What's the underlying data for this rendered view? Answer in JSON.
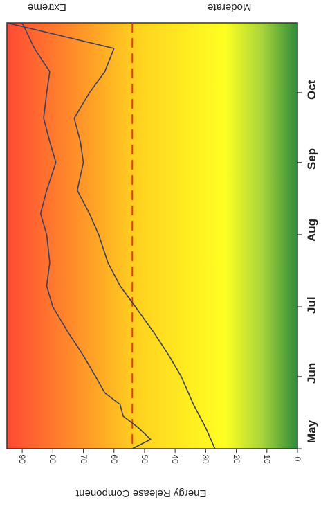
{
  "labels": {
    "extreme": "Extreme",
    "moderate": "Moderate",
    "ylabel": "Energy Release Component"
  },
  "chart_data": {
    "type": "line",
    "ylabel": "Energy Release Component",
    "xlabel": "",
    "x_ticks": [
      "May",
      "Jun",
      "Jul",
      "Aug",
      "Sep",
      "Oct"
    ],
    "y_ticks": [
      "0",
      "10",
      "20",
      "30",
      "40",
      "50",
      "60",
      "70",
      "80",
      "90"
    ],
    "ylim": [
      0,
      95
    ],
    "xlim": [
      "May 1",
      "Oct 31"
    ],
    "background_gradient": [
      "#2e8b3a",
      "#ffff22",
      "#ffd21f",
      "#ff4a35"
    ],
    "reference_line": {
      "value": 54,
      "color": "#e03a2a",
      "style": "dashed"
    },
    "series": [
      {
        "color": "#3a4060",
        "x": [
          "May 1",
          "May 5",
          "May 10",
          "May 15",
          "May 20",
          "May 25",
          "Jun 1",
          "Jun 10",
          "Jun 20",
          "Jul 1",
          "Jul 10",
          "Jul 20",
          "Aug 1",
          "Aug 10",
          "Aug 20",
          "Sep 1",
          "Sep 10",
          "Sep 20",
          "Oct 1",
          "Oct 10",
          "Oct 20",
          "Oct 31"
        ],
        "values": [
          54,
          48,
          52,
          57,
          58,
          63,
          66,
          70,
          75,
          80,
          82,
          81,
          82,
          84,
          82,
          79,
          81,
          83,
          82,
          81,
          86,
          90
        ]
      },
      {
        "color": "#3a4060",
        "x": [
          "May 1",
          "May 10",
          "May 20",
          "Jun 1",
          "Jun 10",
          "Jun 20",
          "Jul 1",
          "Jul 10",
          "Jul 20",
          "Aug 1",
          "Aug 10",
          "Aug 20",
          "Sep 1",
          "Sep 10",
          "Sep 20",
          "Oct 1",
          "Oct 10",
          "Oct 20",
          "Oct 31"
        ],
        "values": [
          27,
          30,
          34,
          38,
          42,
          47,
          53,
          58,
          62,
          65,
          68,
          72,
          70,
          71,
          73,
          68,
          63,
          60,
          95
        ]
      }
    ]
  }
}
